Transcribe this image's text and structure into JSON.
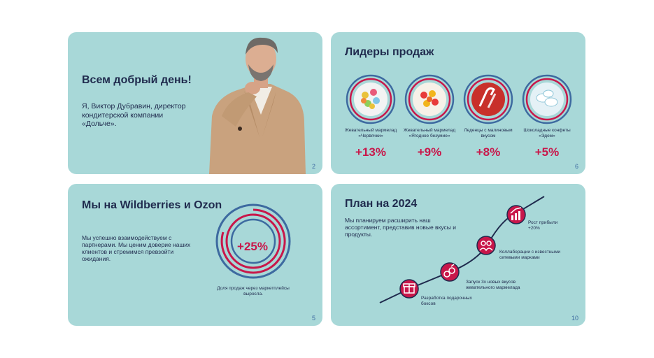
{
  "slide_greeting": {
    "title": "Всем добрый день!",
    "intro": "Я, Виктор Дубравин, директор кондитерской компании «Дольче».",
    "page_number": "2"
  },
  "slide_leaders": {
    "title": "Лидеры продаж",
    "products": [
      {
        "name": "Жевательный мармелад «Червячки»",
        "growth": "+13%"
      },
      {
        "name": "Жевательный мармелад «Ягодное безумие»",
        "growth": "+9%"
      },
      {
        "name": "Леденцы с малиновым вкусом",
        "growth": "+8%"
      },
      {
        "name": "Шоколадные конфеты «Эдем»",
        "growth": "+5%"
      }
    ],
    "page_number": "6"
  },
  "slide_marketplaces": {
    "title": "Мы на Wildberries и Ozon",
    "text": "Мы успешно взаимодействуем с партнерами. Мы ценим доверие наших клиентов и стремимся превзойти ожидания.",
    "growth_value": "+25%",
    "growth_caption": "Доля продаж через маркетплейсы выросла.",
    "page_number": "5"
  },
  "slide_plan": {
    "title": "План на 2024",
    "text": "Мы планируем расширить наш ассортимент, представив новые вкусы и продукты.",
    "milestones": [
      {
        "label": "Разработка подарочных боксов",
        "icon": "gift-icon"
      },
      {
        "label": "Запуск 3х новых вкусов жевательного мармелада",
        "icon": "berry-icon"
      },
      {
        "label": "Коллаборации с известными сетевыми марками",
        "icon": "partners-icon"
      },
      {
        "label": "Рост прибыли +20%",
        "icon": "profit-chart-icon"
      }
    ],
    "page_number": "10"
  },
  "colors": {
    "slide_bg": "#a8d8d8",
    "accent_red": "#c8174a",
    "accent_blue": "#3d6aa0",
    "text_dark": "#1f2a4d"
  }
}
